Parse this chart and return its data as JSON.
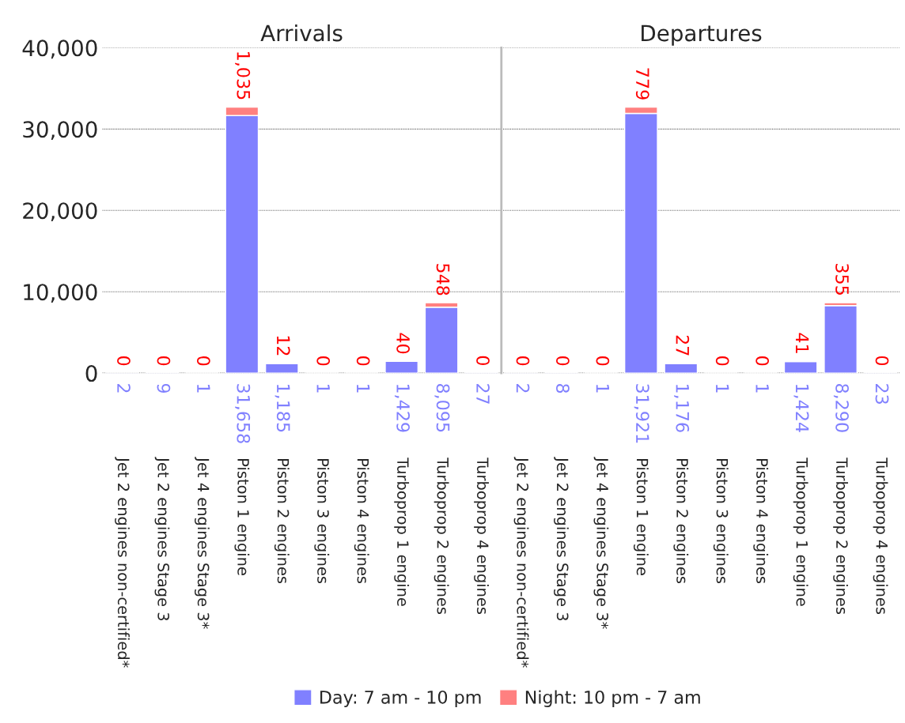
{
  "chart_data": [
    {
      "type": "bar",
      "title": "Arrivals",
      "stacked": true,
      "grid": "y",
      "legend": "bottom",
      "categories": [
        "Jet 2 engines non-certified*",
        "Jet 2 engines Stage 3",
        "Jet 4 engines Stage 3*",
        "Piston 1 engine",
        "Piston 2 engines",
        "Piston 3 engines",
        "Piston 4 engines",
        "Turboprop 1 engine",
        "Turboprop 2 engines",
        "Turboprop 4 engines"
      ],
      "series": [
        {
          "name": "Day: 7 am - 10 pm",
          "color": "#8080ff",
          "values": [
            2,
            9,
            1,
            31658,
            1185,
            1,
            1,
            1429,
            8095,
            27
          ],
          "value_labels": [
            "2",
            "9",
            "1",
            "31,658",
            "1,185",
            "1",
            "1",
            "1,429",
            "8,095",
            "27"
          ]
        },
        {
          "name": "Night: 10 pm - 7 am",
          "color": "#ff8080",
          "values": [
            0,
            0,
            0,
            1035,
            12,
            0,
            0,
            40,
            548,
            0
          ],
          "value_labels": [
            "0",
            "0",
            "0",
            "1,035",
            "12",
            "0",
            "0",
            "40",
            "548",
            "0"
          ]
        }
      ],
      "ylim": [
        0,
        40000
      ],
      "yticks": [
        {
          "value": 0,
          "label": "0"
        },
        {
          "value": 10000,
          "label": "10,000"
        },
        {
          "value": 20000,
          "label": "20,000"
        },
        {
          "value": 30000,
          "label": "30,000"
        },
        {
          "value": 40000,
          "label": "40,000"
        }
      ]
    },
    {
      "type": "bar",
      "title": "Departures",
      "stacked": true,
      "grid": "y",
      "tick_labels": "x",
      "categories": [
        "Jet 2 engines non-certified*",
        "Jet 2 engines Stage 3",
        "Jet 4 engines Stage 3*",
        "Piston 1 engine",
        "Piston 2 engines",
        "Piston 3 engines",
        "Piston 4 engines",
        "Turboprop 1 engine",
        "Turboprop 2 engines",
        "Turboprop 4 engines"
      ],
      "series": [
        {
          "color": "#8080ff",
          "values": [
            2,
            8,
            1,
            31921,
            1176,
            1,
            1,
            1424,
            8290,
            23
          ],
          "value_labels": [
            "2",
            "8",
            "1",
            "31,921",
            "1,176",
            "1",
            "1",
            "1,424",
            "8,290",
            "23"
          ]
        },
        {
          "color": "#ff8080",
          "values": [
            0,
            0,
            0,
            779,
            27,
            0,
            0,
            41,
            355,
            0
          ],
          "value_labels": [
            "0",
            "0",
            "0",
            "779",
            "27",
            "0",
            "0",
            "41",
            "355",
            "0"
          ]
        }
      ],
      "ylim": [
        0,
        40000
      ],
      "yticks": [
        {
          "value": 0,
          "label": null
        },
        {
          "value": 10000,
          "label": null
        },
        {
          "value": 20000,
          "label": null
        },
        {
          "value": 30000,
          "label": null
        },
        {
          "value": 40000,
          "label": null
        }
      ]
    }
  ]
}
